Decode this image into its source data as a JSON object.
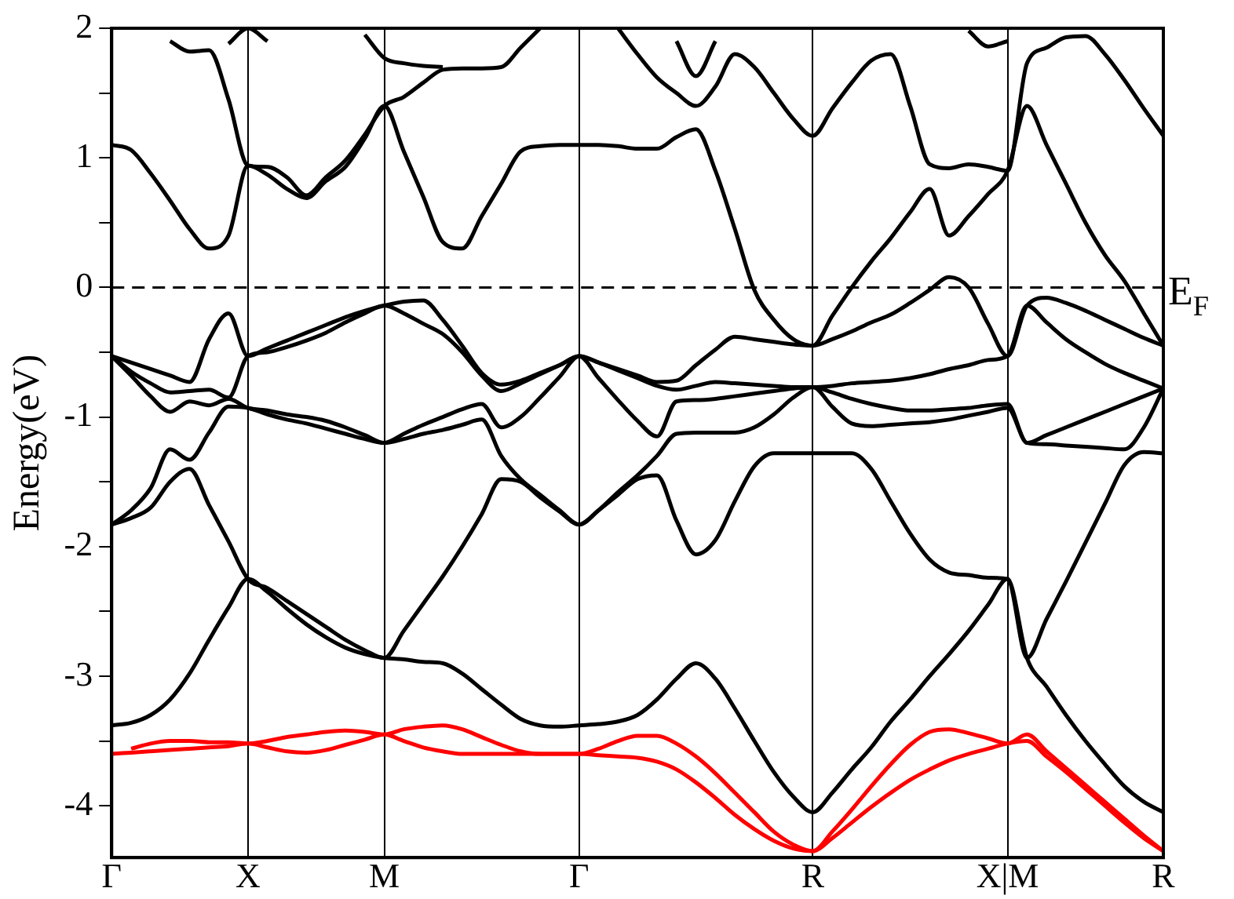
{
  "chart_data": {
    "type": "line",
    "ylabel": "Energy(eV)",
    "ylim": [
      -4.4,
      2
    ],
    "categories": [
      "Γ",
      null,
      null,
      null,
      null,
      null,
      null,
      "X",
      null,
      null,
      null,
      null,
      null,
      null,
      "M",
      null,
      null,
      null,
      null,
      null,
      null,
      null,
      null,
      null,
      "Γ",
      null,
      null,
      null,
      null,
      null,
      null,
      null,
      null,
      null,
      null,
      null,
      "R",
      null,
      null,
      null,
      null,
      null,
      null,
      null,
      null,
      null,
      "X|M",
      null,
      null,
      null,
      null,
      null,
      null,
      null,
      "R"
    ],
    "yticks": [
      -4,
      {
        "value": -3.5,
        "label": null
      },
      -3,
      {
        "value": -2.5,
        "label": null
      },
      -2,
      {
        "value": -1.5,
        "label": null
      },
      -1,
      {
        "value": -0.5,
        "label": null
      },
      0,
      {
        "value": 0.5,
        "label": null
      },
      1,
      {
        "value": 1.5,
        "label": null
      },
      2
    ],
    "grid": "x",
    "legend": false,
    "marker": "none",
    "line_style": "solid",
    "ref_lines": [
      {
        "axis": "y",
        "value": 0,
        "label": "E$_{F}$",
        "line_style": "dashed",
        "color": "#000000"
      }
    ],
    "series": [
      {
        "color": "#ff0000",
        "values": [
          -3.6,
          -3.59,
          -3.58,
          -3.57,
          -3.56,
          -3.55,
          -3.54,
          -3.52,
          -3.55,
          -3.58,
          -3.59,
          -3.57,
          -3.53,
          -3.49,
          -3.45,
          -3.5,
          -3.55,
          -3.58,
          -3.6,
          -3.6,
          -3.6,
          -3.6,
          -3.6,
          -3.6,
          -3.6,
          -3.61,
          -3.62,
          -3.63,
          -3.66,
          -3.72,
          -3.82,
          -3.94,
          -4.07,
          -4.18,
          -4.27,
          -4.33,
          -4.35,
          -4.25,
          -4.13,
          -4.01,
          -3.9,
          -3.8,
          -3.72,
          -3.65,
          -3.6,
          -3.56,
          -3.52,
          -3.5,
          -3.62,
          -3.74,
          -3.87,
          -4.0,
          -4.13,
          -4.25,
          -4.35
        ]
      },
      {
        "color": "#ff0000",
        "values": [
          null,
          -3.56,
          -3.52,
          -3.5,
          -3.5,
          -3.51,
          -3.51,
          -3.52,
          -3.5,
          -3.47,
          -3.45,
          -3.43,
          -3.42,
          -3.43,
          -3.45,
          -3.41,
          -3.39,
          -3.38,
          -3.41,
          -3.47,
          -3.53,
          -3.58,
          -3.6,
          -3.6,
          -3.6,
          -3.56,
          -3.5,
          -3.46,
          -3.46,
          -3.52,
          -3.62,
          -3.75,
          -3.9,
          -4.05,
          -4.2,
          -4.3,
          -4.35,
          -4.2,
          -4.03,
          -3.85,
          -3.68,
          -3.53,
          -3.43,
          -3.41,
          -3.44,
          -3.48,
          -3.52,
          -3.45,
          -3.58,
          -3.71,
          -3.84,
          -3.97,
          -4.1,
          -4.23,
          -4.35
        ]
      },
      {
        "color": "#000000",
        "values": [
          -3.38,
          -3.36,
          -3.3,
          -3.18,
          -2.98,
          -2.72,
          -2.47,
          -2.25,
          -2.35,
          -2.48,
          -2.6,
          -2.7,
          -2.78,
          -2.83,
          -2.86,
          -2.87,
          -2.89,
          -2.9,
          -2.98,
          -3.1,
          -3.22,
          -3.33,
          -3.38,
          -3.39,
          -3.38,
          -3.37,
          -3.35,
          -3.3,
          -3.18,
          -3.02,
          -2.9,
          -3.02,
          -3.25,
          -3.5,
          -3.74,
          -3.93,
          -4.05,
          -3.9,
          -3.72,
          -3.55,
          -3.35,
          -3.18,
          -3.0,
          -2.83,
          -2.65,
          -2.45,
          -2.25,
          -2.86,
          -3.08,
          -3.3,
          -3.5,
          -3.68,
          -3.85,
          -3.97,
          -4.05
        ]
      },
      {
        "color": "#000000",
        "values": [
          -1.83,
          -1.78,
          -1.7,
          -1.5,
          -1.4,
          -1.68,
          -1.96,
          -2.25,
          -2.32,
          -2.42,
          -2.52,
          -2.62,
          -2.72,
          -2.8,
          -2.86,
          -2.65,
          -2.44,
          -2.23,
          -2.0,
          -1.75,
          -1.48,
          -1.5,
          -1.62,
          -1.73,
          -1.83,
          -1.72,
          -1.6,
          -1.48,
          -1.45,
          -1.8,
          -2.06,
          -1.95,
          -1.65,
          -1.38,
          -1.28,
          -1.28,
          -1.28,
          -1.28,
          -1.28,
          -1.4,
          -1.65,
          -1.9,
          -2.1,
          -2.2,
          -2.22,
          -2.24,
          -2.25,
          -2.86,
          -2.56,
          -2.27,
          -1.97,
          -1.67,
          -1.37,
          -1.27,
          -1.28
        ]
      },
      {
        "color": "#000000",
        "values": [
          -1.83,
          -1.72,
          -1.55,
          -1.25,
          -1.33,
          -1.12,
          -0.92,
          -0.93,
          -0.98,
          -1.02,
          -1.05,
          -1.09,
          -1.13,
          -1.17,
          -1.2,
          -1.17,
          -1.13,
          -1.1,
          -1.06,
          -1.02,
          -1.3,
          -1.48,
          -1.6,
          -1.72,
          -1.83,
          -1.72,
          -1.58,
          -1.45,
          -1.3,
          -1.13,
          -1.12,
          -1.12,
          -1.12,
          -1.08,
          -0.98,
          -0.85,
          -0.77,
          -0.92,
          -1.05,
          -1.07,
          -1.06,
          -1.05,
          -1.04,
          -1.02,
          -0.99,
          -0.96,
          -0.93,
          -1.2,
          -1.21,
          -1.22,
          -1.23,
          -1.24,
          -1.25,
          -1.08,
          -0.78
        ]
      },
      {
        "color": "#000000",
        "values": [
          -0.53,
          -0.68,
          -0.84,
          -0.96,
          -0.88,
          -0.91,
          -0.86,
          -0.93,
          -0.95,
          -0.98,
          -1.0,
          -1.03,
          -1.08,
          -1.14,
          -1.2,
          -1.13,
          -1.06,
          -1.0,
          -0.94,
          -0.9,
          -1.08,
          -1.0,
          -0.85,
          -0.69,
          -0.53,
          -0.7,
          -0.87,
          -1.03,
          -1.15,
          -0.88,
          -0.87,
          -0.86,
          -0.84,
          -0.82,
          -0.8,
          -0.78,
          -0.77,
          -0.81,
          -0.86,
          -0.9,
          -0.93,
          -0.95,
          -0.95,
          -0.94,
          -0.93,
          -0.91,
          -0.9,
          -1.2,
          -1.14,
          -1.08,
          -1.02,
          -0.96,
          -0.9,
          -0.84,
          -0.78
        ]
      },
      {
        "color": "#000000",
        "values": [
          -0.53,
          -0.65,
          -0.74,
          -0.81,
          -0.8,
          -0.79,
          -0.85,
          -0.53,
          -0.5,
          -0.46,
          -0.41,
          -0.35,
          -0.27,
          -0.2,
          -0.14,
          -0.2,
          -0.28,
          -0.36,
          -0.5,
          -0.68,
          -0.8,
          -0.74,
          -0.67,
          -0.6,
          -0.53,
          -0.58,
          -0.64,
          -0.7,
          -0.76,
          -0.79,
          -0.76,
          -0.73,
          -0.74,
          -0.75,
          -0.76,
          -0.77,
          -0.77,
          -0.76,
          -0.74,
          -0.73,
          -0.72,
          -0.7,
          -0.67,
          -0.63,
          -0.6,
          -0.56,
          -0.53,
          -0.14,
          -0.27,
          -0.4,
          -0.5,
          -0.59,
          -0.66,
          -0.72,
          -0.78
        ]
      },
      {
        "color": "#000000",
        "values": [
          -0.53,
          -0.58,
          -0.63,
          -0.68,
          -0.73,
          -0.4,
          -0.2,
          -0.53,
          -0.47,
          -0.41,
          -0.35,
          -0.29,
          -0.23,
          -0.18,
          -0.14,
          -0.11,
          -0.1,
          -0.25,
          -0.45,
          -0.66,
          -0.75,
          -0.72,
          -0.66,
          -0.6,
          -0.53,
          -0.58,
          -0.63,
          -0.68,
          -0.73,
          -0.72,
          -0.6,
          -0.48,
          -0.38,
          -0.4,
          -0.42,
          -0.44,
          -0.45,
          -0.4,
          -0.34,
          -0.27,
          -0.21,
          -0.12,
          -0.02,
          0.08,
          0.0,
          -0.28,
          -0.53,
          -0.14,
          -0.08,
          -0.12,
          -0.18,
          -0.25,
          -0.32,
          -0.39,
          -0.45
        ]
      },
      {
        "color": "#000000",
        "values": [
          1.1,
          1.06,
          0.88,
          0.67,
          0.45,
          0.3,
          0.4,
          0.94,
          0.87,
          0.76,
          0.69,
          0.82,
          0.93,
          1.15,
          1.4,
          1.05,
          0.7,
          0.35,
          0.3,
          0.55,
          0.8,
          1.05,
          1.09,
          1.1,
          1.1,
          1.1,
          1.09,
          1.07,
          1.07,
          1.16,
          1.22,
          0.9,
          0.45,
          -0.02,
          -0.25,
          -0.4,
          -0.45,
          -0.22,
          0.0,
          0.2,
          0.38,
          0.58,
          0.76,
          0.4,
          0.55,
          0.72,
          0.9,
          1.4,
          1.1,
          0.8,
          0.5,
          0.25,
          0.05,
          -0.2,
          -0.45
        ]
      },
      {
        "color": "#000000",
        "values": [
          null,
          null,
          null,
          1.9,
          1.82,
          1.83,
          1.45,
          0.94,
          0.93,
          0.85,
          0.71,
          0.85,
          0.98,
          1.18,
          1.4,
          1.47,
          1.58,
          1.68,
          1.69,
          1.69,
          1.7,
          1.85,
          2.0,
          null,
          null,
          null,
          2.0,
          1.8,
          1.62,
          1.5,
          1.4,
          1.55,
          1.8,
          1.7,
          1.5,
          1.3,
          1.17,
          1.38,
          1.58,
          1.75,
          1.8,
          1.4,
          0.95,
          0.92,
          0.95,
          0.93,
          0.9,
          1.73,
          1.85,
          1.93,
          1.94,
          1.8,
          1.6,
          1.38,
          1.17
        ]
      },
      {
        "color": "#000000",
        "values": [
          null,
          null,
          null,
          null,
          null,
          null,
          1.88,
          2.0,
          1.9,
          null,
          null,
          null,
          null,
          1.95,
          1.77,
          1.73,
          1.71,
          1.7,
          null,
          null,
          null,
          null,
          null,
          null,
          null,
          null,
          null,
          null,
          null,
          1.9,
          1.63,
          1.9,
          null,
          null,
          null,
          null,
          null,
          null,
          null,
          null,
          null,
          null,
          null,
          null,
          1.98,
          1.86,
          1.9,
          null,
          null,
          null,
          null,
          null,
          null,
          null,
          null
        ]
      }
    ]
  }
}
